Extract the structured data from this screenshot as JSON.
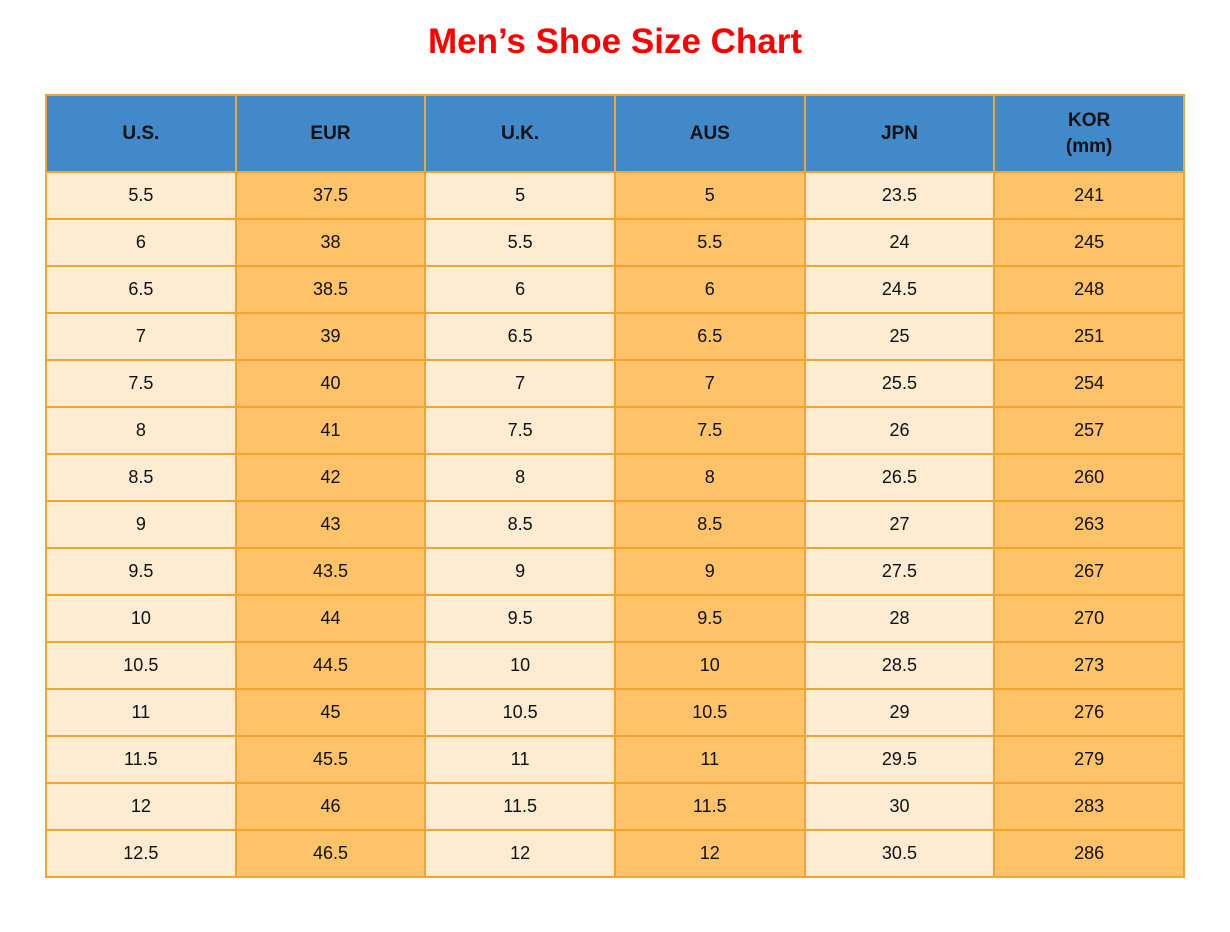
{
  "title": "Men’s Shoe Size Chart",
  "colors": {
    "title_red": "#FF0000",
    "header_blue": "#4189C8",
    "cell_cream": "#FDEBD2",
    "cell_orange": "#FEC368",
    "border_orange": "#F2A430",
    "text_black": "#111111"
  },
  "table": {
    "columns": [
      {
        "id": "us",
        "label": "U.S."
      },
      {
        "id": "eur",
        "label": "EUR"
      },
      {
        "id": "uk",
        "label": "U.K."
      },
      {
        "id": "aus",
        "label": "AUS"
      },
      {
        "id": "jpn",
        "label": "JPN"
      },
      {
        "id": "kor",
        "label": "KOR",
        "sublabel": "(mm)"
      }
    ],
    "rows": [
      [
        "5.5",
        "37.5",
        "5",
        "5",
        "23.5",
        "241"
      ],
      [
        "6",
        "38",
        "5.5",
        "5.5",
        "24",
        "245"
      ],
      [
        "6.5",
        "38.5",
        "6",
        "6",
        "24.5",
        "248"
      ],
      [
        "7",
        "39",
        "6.5",
        "6.5",
        "25",
        "251"
      ],
      [
        "7.5",
        "40",
        "7",
        "7",
        "25.5",
        "254"
      ],
      [
        "8",
        "41",
        "7.5",
        "7.5",
        "26",
        "257"
      ],
      [
        "8.5",
        "42",
        "8",
        "8",
        "26.5",
        "260"
      ],
      [
        "9",
        "43",
        "8.5",
        "8.5",
        "27",
        "263"
      ],
      [
        "9.5",
        "43.5",
        "9",
        "9",
        "27.5",
        "267"
      ],
      [
        "10",
        "44",
        "9.5",
        "9.5",
        "28",
        "270"
      ],
      [
        "10.5",
        "44.5",
        "10",
        "10",
        "28.5",
        "273"
      ],
      [
        "11",
        "45",
        "10.5",
        "10.5",
        "29",
        "276"
      ],
      [
        "11.5",
        "45.5",
        "11",
        "11",
        "29.5",
        "279"
      ],
      [
        "12",
        "46",
        "11.5",
        "11.5",
        "30",
        "283"
      ],
      [
        "12.5",
        "46.5",
        "12",
        "12",
        "30.5",
        "286"
      ]
    ]
  },
  "chart_data": {
    "type": "table",
    "title": "Men’s Shoe Size Chart",
    "columns": [
      "U.S.",
      "EUR",
      "U.K.",
      "AUS",
      "JPN",
      "KOR (mm)"
    ],
    "rows": [
      [
        5.5,
        37.5,
        5,
        5,
        23.5,
        241
      ],
      [
        6,
        38,
        5.5,
        5.5,
        24,
        245
      ],
      [
        6.5,
        38.5,
        6,
        6,
        24.5,
        248
      ],
      [
        7,
        39,
        6.5,
        6.5,
        25,
        251
      ],
      [
        7.5,
        40,
        7,
        7,
        25.5,
        254
      ],
      [
        8,
        41,
        7.5,
        7.5,
        26,
        257
      ],
      [
        8.5,
        42,
        8,
        8,
        26.5,
        260
      ],
      [
        9,
        43,
        8.5,
        8.5,
        27,
        263
      ],
      [
        9.5,
        43.5,
        9,
        9,
        27.5,
        267
      ],
      [
        10,
        44,
        9.5,
        9.5,
        28,
        270
      ],
      [
        10.5,
        44.5,
        10,
        10,
        28.5,
        273
      ],
      [
        11,
        45,
        10.5,
        10.5,
        29,
        276
      ],
      [
        11.5,
        45.5,
        11,
        11,
        29.5,
        279
      ],
      [
        12,
        46,
        11.5,
        11.5,
        30,
        283
      ],
      [
        12.5,
        46.5,
        12,
        12,
        30.5,
        286
      ]
    ]
  }
}
